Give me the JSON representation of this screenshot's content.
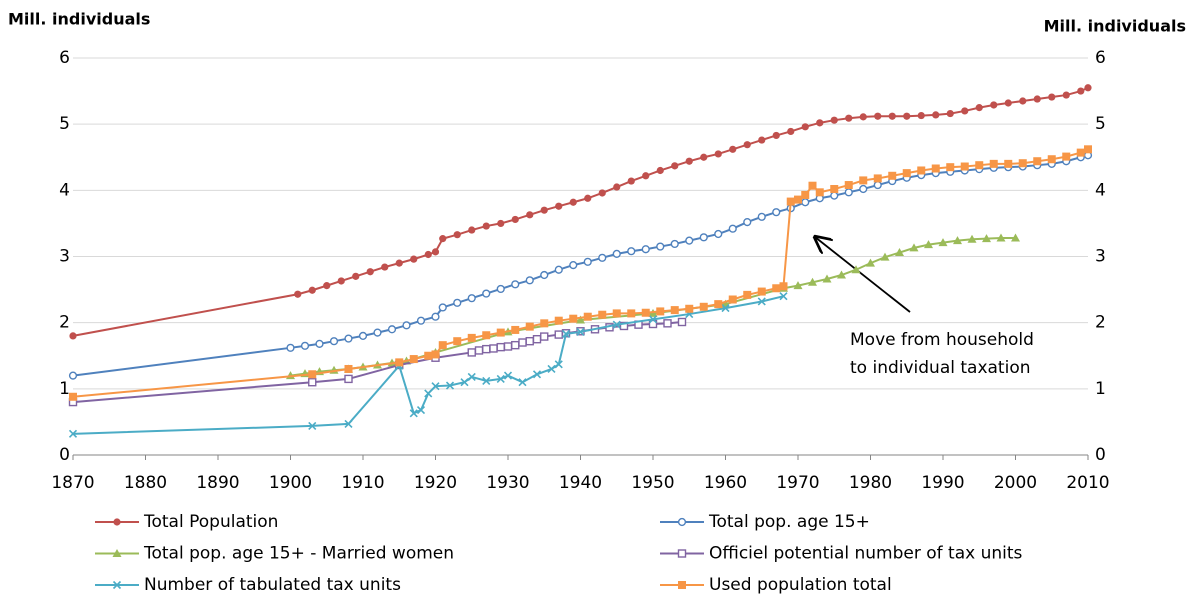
{
  "chart_data": {
    "type": "line",
    "ylabel": "Mill. individuals",
    "y2label": "Mill. individuals",
    "xlim": [
      1870,
      2010
    ],
    "xticks": [
      1870,
      1880,
      1890,
      1900,
      1910,
      1920,
      1930,
      1940,
      1950,
      1960,
      1970,
      1980,
      1990,
      2000,
      2010
    ],
    "ylim": [
      0,
      6
    ],
    "yticks": [
      0,
      1,
      2,
      3,
      4,
      5,
      6
    ],
    "y2lim": [
      0,
      6
    ],
    "y2ticks": [
      0,
      1,
      2,
      3,
      4,
      5,
      6
    ],
    "grid": true,
    "legend": "bottom",
    "annotation": [
      "Move from household",
      "to individual taxation"
    ],
    "series": [
      {
        "name": "Total Population",
        "color": "#c0504d",
        "marker": "circle",
        "x": [
          1870,
          1901,
          1903,
          1905,
          1907,
          1909,
          1911,
          1913,
          1915,
          1917,
          1919,
          1920,
          1921,
          1923,
          1925,
          1927,
          1929,
          1931,
          1933,
          1935,
          1937,
          1939,
          1941,
          1943,
          1945,
          1947,
          1949,
          1951,
          1953,
          1955,
          1957,
          1959,
          1961,
          1963,
          1965,
          1967,
          1969,
          1971,
          1973,
          1975,
          1977,
          1979,
          1981,
          1983,
          1985,
          1987,
          1989,
          1991,
          1993,
          1995,
          1997,
          1999,
          2001,
          2003,
          2005,
          2007,
          2009,
          2010
        ],
        "values": [
          1.8,
          2.43,
          2.49,
          2.56,
          2.63,
          2.7,
          2.77,
          2.84,
          2.9,
          2.96,
          3.03,
          3.07,
          3.27,
          3.33,
          3.4,
          3.46,
          3.5,
          3.56,
          3.63,
          3.7,
          3.76,
          3.82,
          3.88,
          3.96,
          4.05,
          4.14,
          4.22,
          4.3,
          4.37,
          4.44,
          4.5,
          4.55,
          4.62,
          4.69,
          4.76,
          4.83,
          4.89,
          4.96,
          5.02,
          5.06,
          5.09,
          5.11,
          5.12,
          5.12,
          5.12,
          5.13,
          5.14,
          5.16,
          5.2,
          5.25,
          5.29,
          5.32,
          5.35,
          5.38,
          5.41,
          5.44,
          5.5,
          5.55
        ]
      },
      {
        "name": "Total pop. age 15+",
        "color": "#4f81bd",
        "marker": "hollow-circle",
        "x": [
          1870,
          1900,
          1902,
          1904,
          1906,
          1908,
          1910,
          1912,
          1914,
          1916,
          1918,
          1920,
          1921,
          1923,
          1925,
          1927,
          1929,
          1931,
          1933,
          1935,
          1937,
          1939,
          1941,
          1943,
          1945,
          1947,
          1949,
          1951,
          1953,
          1955,
          1957,
          1959,
          1961,
          1963,
          1965,
          1967,
          1969,
          1971,
          1973,
          1975,
          1977,
          1979,
          1981,
          1983,
          1985,
          1987,
          1989,
          1991,
          1993,
          1995,
          1997,
          1999,
          2001,
          2003,
          2005,
          2007,
          2009,
          2010
        ],
        "values": [
          1.2,
          1.62,
          1.65,
          1.68,
          1.72,
          1.76,
          1.8,
          1.85,
          1.9,
          1.96,
          2.03,
          2.09,
          2.23,
          2.3,
          2.37,
          2.44,
          2.51,
          2.58,
          2.64,
          2.72,
          2.8,
          2.87,
          2.92,
          2.98,
          3.04,
          3.08,
          3.11,
          3.15,
          3.19,
          3.24,
          3.29,
          3.34,
          3.42,
          3.52,
          3.6,
          3.67,
          3.73,
          3.82,
          3.88,
          3.92,
          3.97,
          4.02,
          4.08,
          4.14,
          4.19,
          4.23,
          4.26,
          4.28,
          4.3,
          4.32,
          4.34,
          4.35,
          4.36,
          4.38,
          4.4,
          4.44,
          4.5,
          4.53
        ]
      },
      {
        "name": "Total pop. age 15+ - Married women",
        "color": "#9bbb59",
        "marker": "triangle",
        "x": [
          1900,
          1902,
          1904,
          1906,
          1908,
          1910,
          1912,
          1914,
          1916,
          1920,
          1930,
          1940,
          1950,
          1960,
          1968,
          1970,
          1972,
          1974,
          1976,
          1978,
          1980,
          1982,
          1984,
          1986,
          1988,
          1990,
          1992,
          1994,
          1996,
          1998,
          2000
        ],
        "values": [
          1.2,
          1.23,
          1.26,
          1.28,
          1.3,
          1.33,
          1.36,
          1.39,
          1.42,
          1.55,
          1.86,
          2.04,
          2.14,
          2.28,
          2.52,
          2.56,
          2.61,
          2.66,
          2.72,
          2.8,
          2.9,
          2.99,
          3.06,
          3.13,
          3.18,
          3.21,
          3.24,
          3.26,
          3.27,
          3.28,
          3.28
        ]
      },
      {
        "name": "Officiel potential number of tax units",
        "color": "#8064a2",
        "marker": "hollow-square",
        "x": [
          1870,
          1903,
          1908,
          1915,
          1920,
          1925,
          1926,
          1927,
          1928,
          1929,
          1930,
          1931,
          1932,
          1933,
          1934,
          1935,
          1937,
          1938,
          1940,
          1942,
          1944,
          1946,
          1948,
          1950,
          1952,
          1954
        ],
        "values": [
          0.8,
          1.1,
          1.15,
          1.36,
          1.47,
          1.55,
          1.58,
          1.6,
          1.61,
          1.63,
          1.64,
          1.66,
          1.7,
          1.72,
          1.75,
          1.79,
          1.82,
          1.84,
          1.87,
          1.9,
          1.93,
          1.95,
          1.97,
          1.98,
          1.99,
          2.01
        ]
      },
      {
        "name": "Number of tabulated tax units",
        "color": "#4bacc6",
        "marker": "cross",
        "x": [
          1870,
          1903,
          1908,
          1915,
          1917,
          1918,
          1919,
          1920,
          1922,
          1924,
          1925,
          1927,
          1929,
          1930,
          1932,
          1934,
          1936,
          1937,
          1938,
          1940,
          1945,
          1950,
          1955,
          1960,
          1965,
          1968
        ],
        "values": [
          0.32,
          0.44,
          0.47,
          1.35,
          0.63,
          0.68,
          0.93,
          1.04,
          1.05,
          1.1,
          1.18,
          1.12,
          1.15,
          1.2,
          1.1,
          1.22,
          1.3,
          1.37,
          1.83,
          1.86,
          1.97,
          2.05,
          2.13,
          2.22,
          2.32,
          2.4
        ]
      },
      {
        "name": "Used population total",
        "color": "#f79646",
        "marker": "square",
        "x": [
          1870,
          1903,
          1908,
          1915,
          1917,
          1919,
          1920,
          1921,
          1923,
          1925,
          1927,
          1929,
          1931,
          1933,
          1935,
          1937,
          1939,
          1941,
          1943,
          1945,
          1947,
          1949,
          1951,
          1953,
          1955,
          1957,
          1959,
          1961,
          1963,
          1965,
          1967,
          1968,
          1969,
          1970,
          1971,
          1972,
          1973,
          1975,
          1977,
          1979,
          1981,
          1983,
          1985,
          1987,
          1989,
          1991,
          1993,
          1995,
          1997,
          1999,
          2001,
          2003,
          2005,
          2007,
          2009,
          2010
        ],
        "values": [
          0.88,
          1.22,
          1.3,
          1.4,
          1.45,
          1.5,
          1.52,
          1.66,
          1.72,
          1.77,
          1.81,
          1.85,
          1.89,
          1.94,
          1.99,
          2.03,
          2.06,
          2.09,
          2.12,
          2.14,
          2.14,
          2.15,
          2.17,
          2.19,
          2.21,
          2.24,
          2.28,
          2.35,
          2.42,
          2.47,
          2.52,
          2.55,
          3.83,
          3.86,
          3.93,
          4.07,
          3.97,
          4.02,
          4.08,
          4.15,
          4.18,
          4.22,
          4.26,
          4.3,
          4.33,
          4.35,
          4.36,
          4.38,
          4.4,
          4.4,
          4.41,
          4.44,
          4.47,
          4.51,
          4.57,
          4.62
        ]
      }
    ]
  }
}
